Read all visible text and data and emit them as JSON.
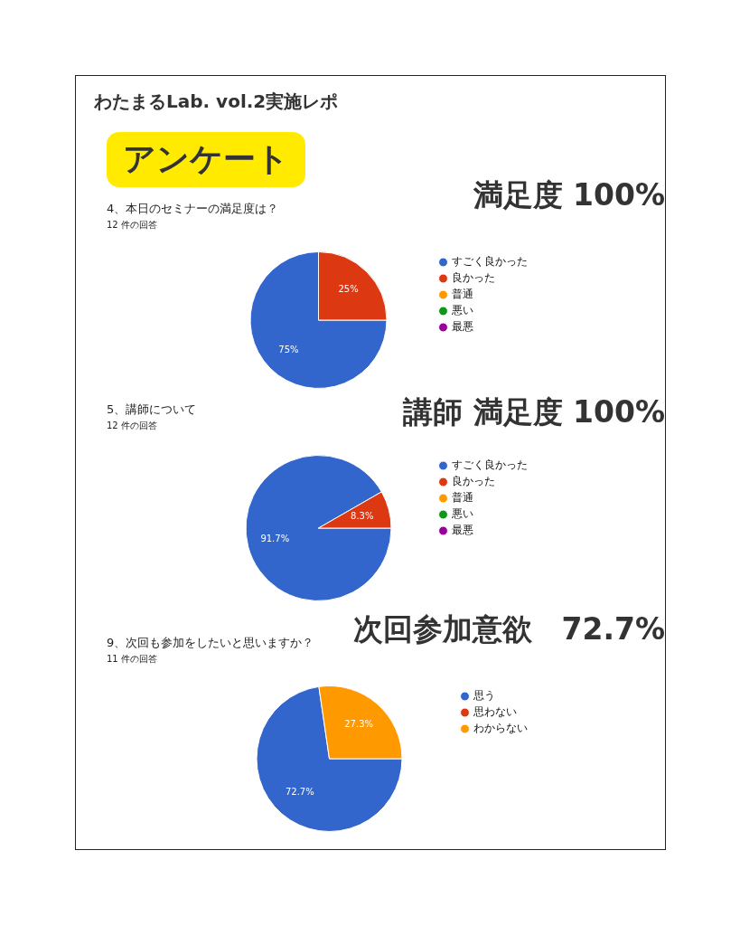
{
  "chart_data": [
    {
      "type": "other",
      "title": "わたまるLab. vol.2実施レポ",
      "annotations": [
        "アンケート"
      ]
    },
    {
      "type": "pie",
      "title": "4、本日のセミナーの満足度は？",
      "subtitle": "12 件の回答",
      "annotations": [
        "満足度 100%"
      ],
      "categories": [
        "すごく良かった",
        "良かった",
        "普通",
        "悪い",
        "最悪"
      ],
      "values": [
        75,
        25,
        0,
        0,
        0
      ],
      "colors": [
        "#3366cc",
        "#dc3912",
        "#ff9900",
        "#109618",
        "#990099"
      ],
      "value_labels": [
        "75%",
        "25%",
        null,
        null,
        null
      ],
      "legend": "right"
    },
    {
      "type": "pie",
      "title": "5、講師について",
      "subtitle": "12 件の回答",
      "annotations": [
        "講師 満足度 100%"
      ],
      "categories": [
        "すごく良かった",
        "良かった",
        "普通",
        "悪い",
        "最悪"
      ],
      "values": [
        91.7,
        8.3,
        0,
        0,
        0
      ],
      "colors": [
        "#3366cc",
        "#dc3912",
        "#ff9900",
        "#109618",
        "#990099"
      ],
      "value_labels": [
        "91.7%",
        "8.3%",
        null,
        null,
        null
      ],
      "legend": "right"
    },
    {
      "type": "pie",
      "title": "9、次回も参加をしたいと思いますか？",
      "subtitle": "11 件の回答",
      "annotations": [
        "次回参加意欲　72.7%"
      ],
      "categories": [
        "思う",
        "思わない",
        "わからない"
      ],
      "values": [
        72.7,
        0,
        27.3
      ],
      "colors": [
        "#3366cc",
        "#dc3912",
        "#ff9900"
      ],
      "value_labels": [
        "72.7%",
        null,
        "27.3%"
      ],
      "legend": "right"
    }
  ]
}
